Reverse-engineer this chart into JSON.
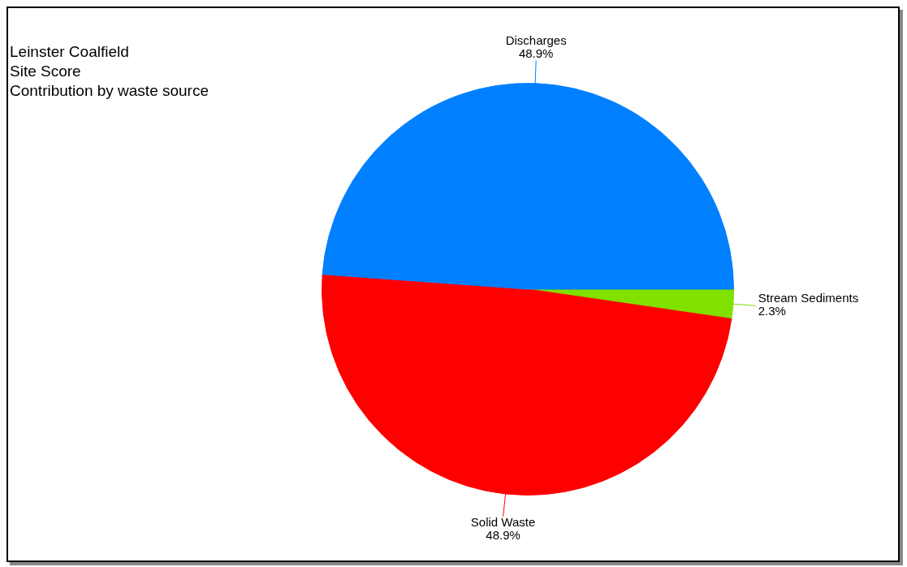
{
  "chart_data": {
    "type": "pie",
    "title": "Leinster Coalfield",
    "subtitle": "Site Score",
    "annotations": [
      "Contribution by waste source"
    ],
    "categories": [
      "Stream Sediments",
      "Solid Waste",
      "Discharges"
    ],
    "values": [
      2.3,
      48.9,
      48.9
    ],
    "value_labels": [
      "2.3%",
      "48.9%",
      "48.9%"
    ],
    "colors": [
      "#80e000",
      "#ff0000",
      "#0080ff"
    ],
    "legend": false
  }
}
